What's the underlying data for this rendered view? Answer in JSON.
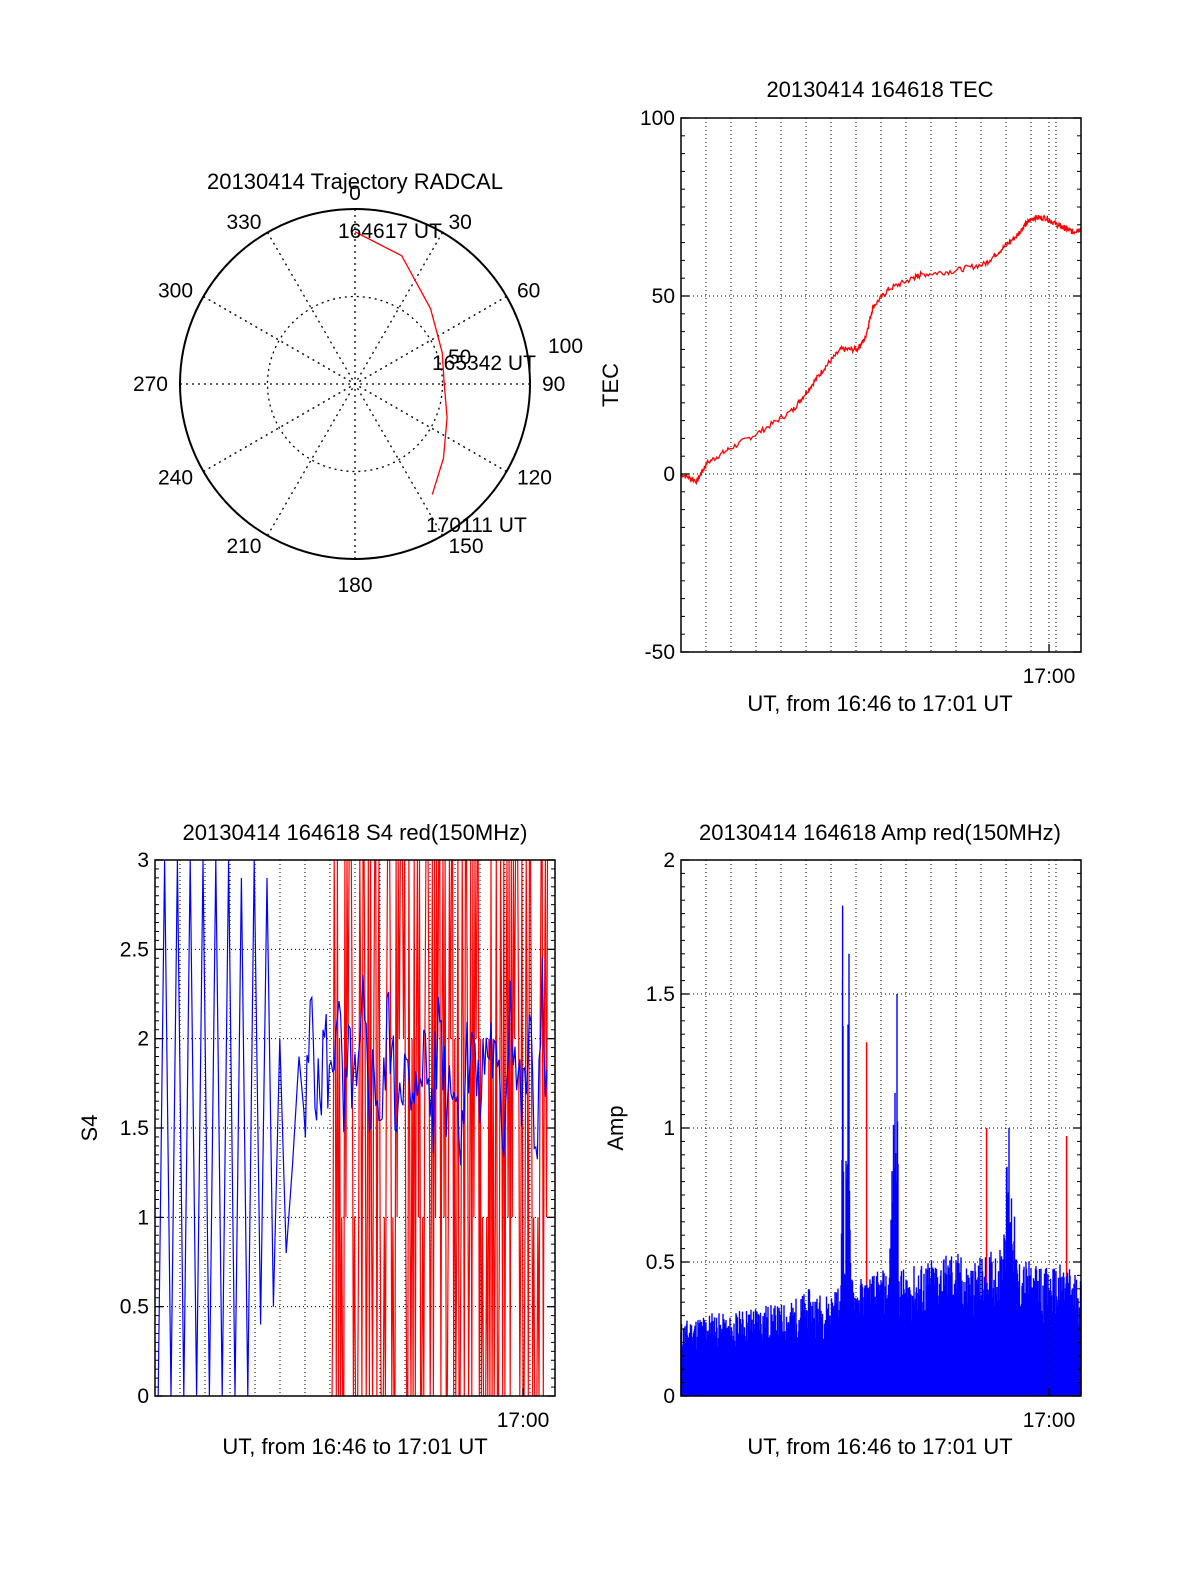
{
  "colors": {
    "red": "#ff0000",
    "blue": "#0000ff",
    "grid": "#000000",
    "axis": "#000000"
  },
  "chart_data": [
    {
      "type": "polar-trajectory",
      "title": "20130414 Trajectory RADCAL",
      "angle_labels": [
        "0",
        "30",
        "60",
        "90",
        "120",
        "150",
        "180",
        "210",
        "240",
        "270",
        "300",
        "330"
      ],
      "radial_labels": [
        "50",
        "100"
      ],
      "radial_max": 100,
      "trajectory": {
        "color": "red",
        "points": [
          {
            "az": 0,
            "r": 87
          },
          {
            "az": 20,
            "r": 78
          },
          {
            "az": 45,
            "r": 61
          },
          {
            "az": 70,
            "r": 53
          },
          {
            "az": 90,
            "r": 51
          },
          {
            "az": 110,
            "r": 56
          },
          {
            "az": 130,
            "r": 66
          },
          {
            "az": 145,
            "r": 77
          }
        ],
        "labels": [
          {
            "text": "164617 UT",
            "az": 6,
            "r": 85
          },
          {
            "text": "165342 UT",
            "az": 83,
            "r": 56
          },
          {
            "text": "170111 UT",
            "az": 138,
            "r": 98
          }
        ]
      }
    },
    {
      "type": "line",
      "title": "20130414 164618 TEC",
      "xlabel": "UT, from 16:46 to 17:01 UT",
      "ylabel": "TEC",
      "xlim": [
        16.77,
        17.02
      ],
      "ylim": [
        -50,
        100
      ],
      "yticks": [
        -50,
        0,
        50,
        100
      ],
      "xticks": [
        {
          "value": 17.0,
          "label": "17:00"
        }
      ],
      "grid": true,
      "series": [
        {
          "color": "red",
          "x": [
            16.77,
            16.78,
            16.786,
            16.8,
            16.82,
            16.84,
            16.85,
            16.86,
            16.87,
            16.88,
            16.885,
            16.89,
            16.9,
            16.915,
            16.92,
            16.94,
            16.96,
            16.97,
            16.98,
            16.985,
            16.99,
            16.998,
            17.005,
            17.01,
            17.015,
            17.02
          ],
          "y": [
            0,
            -2,
            3,
            7,
            12,
            18,
            24,
            30,
            35,
            35,
            38,
            47,
            52,
            55,
            56,
            57,
            59,
            63,
            67,
            70,
            72,
            72,
            70,
            69,
            68,
            69
          ]
        }
      ]
    },
    {
      "type": "line",
      "title": "20130414 164618 S4 red(150MHz)",
      "xlabel": "UT, from 16:46 to 17:01 UT",
      "ylabel": "S4",
      "xlim": [
        16.77,
        17.02
      ],
      "ylim": [
        0,
        3
      ],
      "yticks": [
        0,
        0.5,
        1,
        1.5,
        2,
        2.5,
        3
      ],
      "xticks": [
        {
          "value": 17.0,
          "label": "17:00"
        }
      ],
      "grid": true,
      "series": [
        {
          "color": "blue",
          "x": [
            16.772,
            16.776,
            16.78,
            16.784,
            16.788,
            16.792,
            16.796,
            16.8,
            16.804,
            16.808,
            16.812,
            16.816,
            16.82,
            16.824,
            16.828,
            16.832,
            16.836,
            16.84,
            16.844,
            16.848,
            16.852,
            16.856,
            16.86,
            16.864,
            16.868,
            16.872,
            16.876,
            16.88,
            16.884,
            16.888,
            16.892,
            16.896,
            16.9,
            16.904,
            16.908,
            16.912,
            16.916,
            16.92,
            16.924,
            16.928,
            16.932,
            16.936,
            16.94,
            16.944,
            16.948,
            16.952,
            16.956,
            16.96,
            16.964,
            16.968,
            16.972,
            16.976,
            16.98,
            16.984,
            16.988,
            16.992,
            16.996,
            17.0,
            17.004,
            17.008,
            17.012,
            17.016
          ],
          "y": [
            0,
            3,
            0,
            3,
            0,
            3,
            0,
            3,
            0,
            3,
            0,
            3,
            0,
            2.9,
            0,
            3,
            0.4,
            2.9,
            0.5,
            2.0,
            0.8,
            1.3,
            1.9,
            1.5,
            2.2,
            1.6,
            2.0,
            1.7,
            2.3,
            1.5,
            1.9,
            1.6,
            2.1,
            1.7,
            1.8,
            1.5,
            2.2,
            1.6,
            1.9,
            1.7,
            1.5,
            2.0,
            1.8,
            1.6,
            2.2,
            1.7,
            1.9,
            1.5,
            1.8,
            2.1,
            1.6,
            1.9,
            2.0,
            1.7,
            1.5,
            2.3,
            1.8,
            1.6,
            2.0,
            1.4,
            2.2,
            1.5
          ]
        },
        {
          "color": "red",
          "x": [
            16.88,
            16.884,
            16.888,
            16.892,
            16.896,
            16.9,
            16.904,
            16.908,
            16.912,
            16.916,
            16.92,
            16.924,
            16.928,
            16.932,
            16.936,
            16.94,
            16.944,
            16.948,
            16.952,
            16.956,
            16.96,
            16.964,
            16.968,
            16.972,
            16.976,
            16.98,
            16.984,
            16.988,
            16.992,
            16.996,
            17.0,
            17.004,
            17.008,
            17.012,
            17.016
          ],
          "y": [
            0,
            3,
            0,
            3,
            0,
            3,
            0,
            3,
            0,
            3,
            0,
            3,
            0,
            3,
            0,
            3,
            0,
            3,
            0,
            3,
            0,
            3,
            0,
            3,
            0,
            3,
            0,
            3,
            0,
            3,
            0,
            3,
            0,
            3,
            0
          ]
        }
      ]
    },
    {
      "type": "line",
      "title": "20130414 164618 Amp red(150MHz)",
      "xlabel": "UT, from 16:46 to 17:01 UT",
      "ylabel": "Amp",
      "xlim": [
        16.77,
        17.02
      ],
      "ylim": [
        0,
        2
      ],
      "yticks": [
        0,
        0.5,
        1,
        1.5,
        2
      ],
      "xticks": [
        {
          "value": 17.0,
          "label": "17:00"
        }
      ],
      "grid": true,
      "series": [
        {
          "color": "blue",
          "x": [
            16.77,
            16.78,
            16.79,
            16.8,
            16.81,
            16.82,
            16.83,
            16.84,
            16.85,
            16.86,
            16.87,
            16.871,
            16.872,
            16.875,
            16.876,
            16.88,
            16.89,
            16.9,
            16.905,
            16.906,
            16.91,
            16.92,
            16.93,
            16.94,
            16.95,
            16.96,
            16.97,
            16.975,
            16.98,
            16.99,
            17.0,
            17.01,
            17.02
          ],
          "y": [
            0.28,
            0.3,
            0.32,
            0.3,
            0.33,
            0.35,
            0.34,
            0.36,
            0.4,
            0.38,
            0.42,
            1.83,
            0.5,
            1.65,
            0.45,
            0.44,
            0.46,
            0.48,
            1.5,
            0.5,
            0.47,
            0.5,
            0.52,
            0.55,
            0.5,
            0.53,
            0.56,
            1.0,
            0.52,
            0.5,
            0.48,
            0.5,
            0.45
          ]
        },
        {
          "color": "red",
          "x": [
            16.885,
            16.886,
            16.887,
            16.96,
            16.961,
            16.962,
            17.01,
            17.011,
            17.012
          ],
          "y": [
            0.3,
            1.32,
            0.3,
            0.3,
            1.0,
            0.3,
            0.3,
            0.97,
            0.3
          ]
        }
      ]
    }
  ]
}
